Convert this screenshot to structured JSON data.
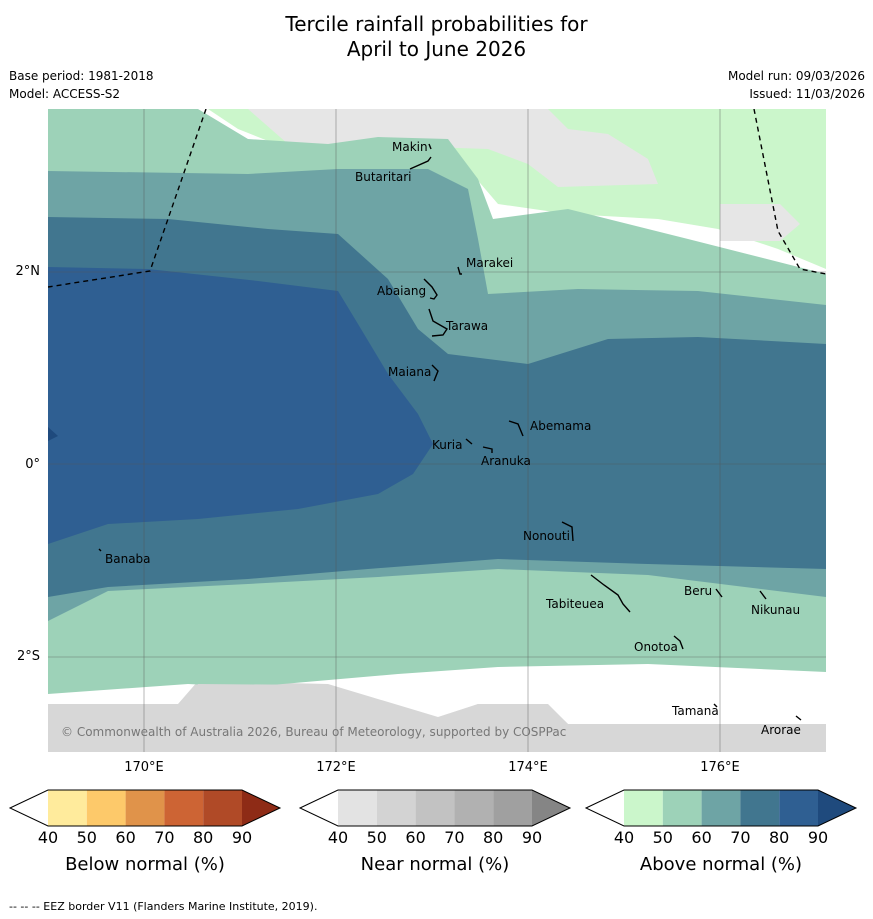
{
  "header": {
    "title_line1": "Tercile rainfall probabilities for",
    "title_line2": "April to June 2026",
    "base_period": "Base period: 1981-2018",
    "model": "Model: ACCESS-S2",
    "model_run": "Model run: 09/03/2026",
    "issued": "Issued: 11/03/2026"
  },
  "map": {
    "latitude_labels": [
      "2°N",
      "0°",
      "2°S"
    ],
    "longitude_labels": [
      "170°E",
      "172°E",
      "174°E",
      "176°E"
    ],
    "islands": [
      "Makin",
      "Butaritari",
      "Marakei",
      "Abaiang",
      "Tarawa",
      "Maiana",
      "Abemama",
      "Kuria",
      "Aranuka",
      "Nonouti",
      "Banaba",
      "Beru",
      "Nikunau",
      "Tabiteuea",
      "Onotoa",
      "Tamana",
      "Arorae"
    ],
    "copyright": "© Commonwealth of Australia 2026, Bureau of Meteorology, supported by COSPPac"
  },
  "colorbars": [
    {
      "label": "Below normal (%)",
      "ticks": [
        "40",
        "50",
        "60",
        "70",
        "80",
        "90"
      ],
      "colors": [
        "#ffffff",
        "#ffeb9c",
        "#fdc96a",
        "#e0934a",
        "#cd6434",
        "#b04a27",
        "#8e2b16"
      ]
    },
    {
      "label": "Near normal (%)",
      "ticks": [
        "40",
        "50",
        "60",
        "70",
        "80",
        "90"
      ],
      "colors": [
        "#ffffff",
        "#e3e3e3",
        "#d3d3d3",
        "#c2c2c2",
        "#b1b1b1",
        "#a0a0a0",
        "#858585"
      ]
    },
    {
      "label": "Above normal (%)",
      "ticks": [
        "40",
        "50",
        "60",
        "70",
        "80",
        "90"
      ],
      "colors": [
        "#ffffff",
        "#cbf6cb",
        "#9dd2b8",
        "#6ea4a5",
        "#41768f",
        "#2f5f92",
        "#1f4a7d"
      ]
    }
  ],
  "footnote": "--  --  -- EEZ border V11 (Flanders Marine Institute, 2019)."
}
